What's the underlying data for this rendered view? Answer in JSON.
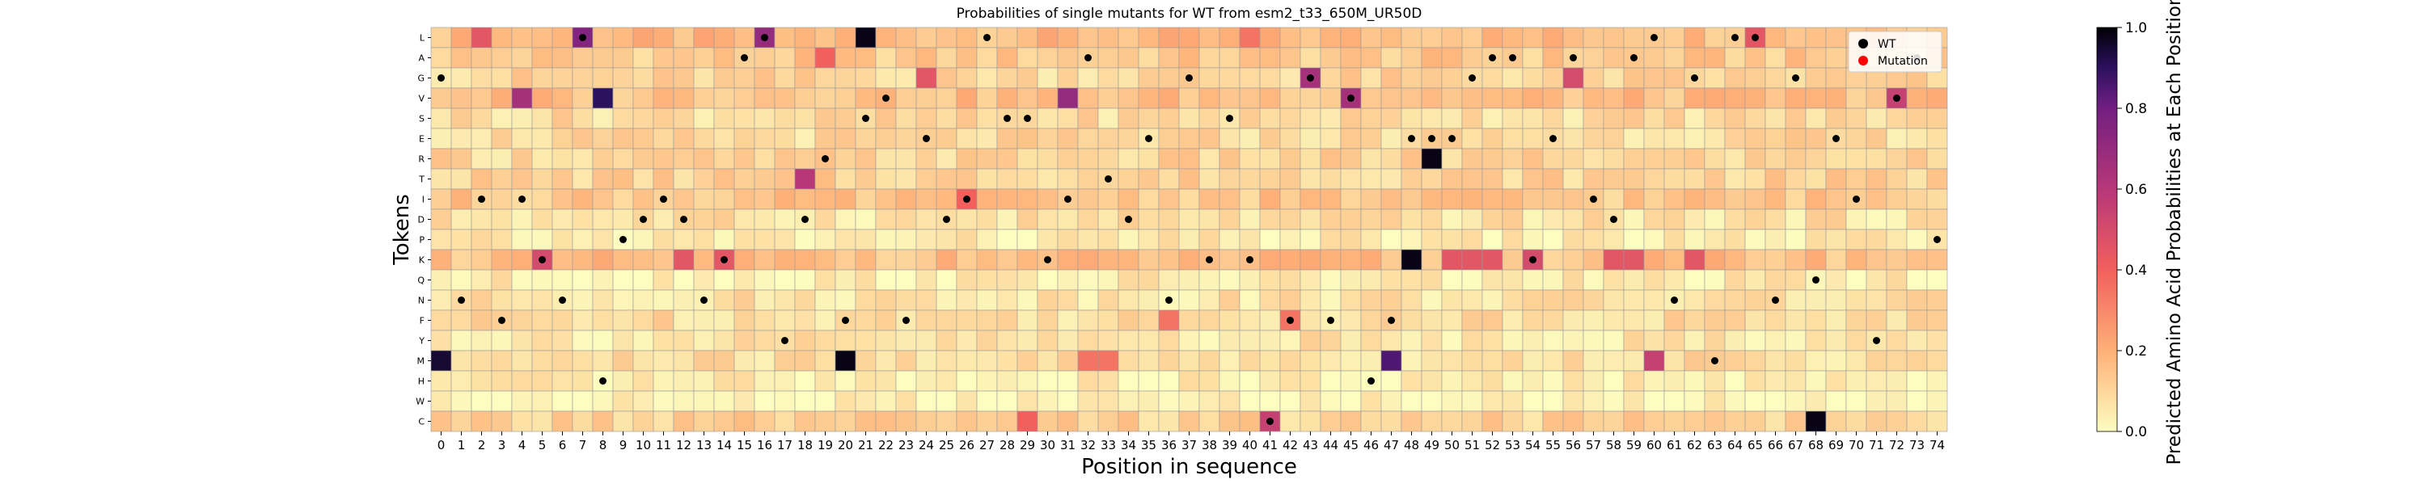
{
  "chart_data": {
    "type": "heatmap",
    "title": "Probabilities of single mutants for WT from esm2_t33_650M_UR50D",
    "xlabel": "Position in sequence",
    "ylabel": "Tokens",
    "x_categories": [
      "0",
      "1",
      "2",
      "3",
      "4",
      "5",
      "6",
      "7",
      "8",
      "9",
      "10",
      "11",
      "12",
      "13",
      "14",
      "15",
      "16",
      "17",
      "18",
      "19",
      "20",
      "21",
      "22",
      "23",
      "24",
      "25",
      "26",
      "27",
      "28",
      "29",
      "30",
      "31",
      "32",
      "33",
      "34",
      "35",
      "36",
      "37",
      "38",
      "39",
      "40",
      "41",
      "42",
      "43",
      "44",
      "45",
      "46",
      "47",
      "48",
      "49",
      "50",
      "51",
      "52",
      "53",
      "54",
      "55",
      "56",
      "57",
      "58",
      "59",
      "60",
      "61",
      "62",
      "63",
      "64",
      "65",
      "66",
      "67",
      "68",
      "69",
      "70",
      "71",
      "72",
      "73",
      "74"
    ],
    "y_categories": [
      "L",
      "A",
      "G",
      "V",
      "S",
      "E",
      "R",
      "T",
      "I",
      "D",
      "P",
      "K",
      "Q",
      "N",
      "F",
      "Y",
      "M",
      "H",
      "W",
      "C"
    ],
    "wt_sequence": [
      "G",
      "N",
      "I",
      "F",
      "I",
      "K",
      "N",
      "L",
      "H",
      "P",
      "D",
      "I",
      "D",
      "N",
      "K",
      "A",
      "L",
      "Y",
      "D",
      "R",
      "F",
      "S",
      "V",
      "F",
      "E",
      "D",
      "I",
      "L",
      "S",
      "S",
      "K",
      "I",
      "A",
      "T",
      "D",
      "E",
      "N",
      "G",
      "K",
      "S",
      "K",
      "C",
      "F",
      "G",
      "F",
      "V",
      "H",
      "F",
      "E",
      "E",
      "E",
      "G",
      "A",
      "A",
      "K",
      "E",
      "A",
      "I",
      "D",
      "A",
      "L",
      "N",
      "G",
      "M",
      "L",
      "L",
      "N",
      "G",
      "Q",
      "E",
      "I",
      "Y",
      "V",
      "A",
      "P"
    ],
    "mutation_points": [],
    "intense_cells": [
      {
        "x": 0,
        "token": "M",
        "value": 0.95
      },
      {
        "x": 7,
        "token": "L",
        "value": 0.75
      },
      {
        "x": 4,
        "token": "V",
        "value": 0.65
      },
      {
        "x": 8,
        "token": "V",
        "value": 0.9
      },
      {
        "x": 16,
        "token": "L",
        "value": 0.7
      },
      {
        "x": 18,
        "token": "T",
        "value": 0.6
      },
      {
        "x": 20,
        "token": "M",
        "value": 0.98
      },
      {
        "x": 21,
        "token": "L",
        "value": 0.98
      },
      {
        "x": 24,
        "token": "G",
        "value": 0.45
      },
      {
        "x": 26,
        "token": "I",
        "value": 0.4
      },
      {
        "x": 31,
        "token": "V",
        "value": 0.7
      },
      {
        "x": 32,
        "token": "M",
        "value": 0.35
      },
      {
        "x": 33,
        "token": "M",
        "value": 0.35
      },
      {
        "x": 41,
        "token": "C",
        "value": 0.55
      },
      {
        "x": 43,
        "token": "G",
        "value": 0.65
      },
      {
        "x": 45,
        "token": "V",
        "value": 0.65
      },
      {
        "x": 47,
        "token": "M",
        "value": 0.85
      },
      {
        "x": 48,
        "token": "K",
        "value": 0.98
      },
      {
        "x": 49,
        "token": "R",
        "value": 0.98
      },
      {
        "x": 5,
        "token": "K",
        "value": 0.5
      },
      {
        "x": 50,
        "token": "K",
        "value": 0.45
      },
      {
        "x": 51,
        "token": "K",
        "value": 0.45
      },
      {
        "x": 52,
        "token": "K",
        "value": 0.45
      },
      {
        "x": 54,
        "token": "K",
        "value": 0.5
      },
      {
        "x": 56,
        "token": "G",
        "value": 0.5
      },
      {
        "x": 58,
        "token": "K",
        "value": 0.45
      },
      {
        "x": 59,
        "token": "K",
        "value": 0.45
      },
      {
        "x": 60,
        "token": "M",
        "value": 0.55
      },
      {
        "x": 62,
        "token": "K",
        "value": 0.45
      },
      {
        "x": 65,
        "token": "L",
        "value": 0.45
      },
      {
        "x": 68,
        "token": "C",
        "value": 0.98
      },
      {
        "x": 72,
        "token": "V",
        "value": 0.55
      },
      {
        "x": 2,
        "token": "L",
        "value": 0.45
      },
      {
        "x": 12,
        "token": "K",
        "value": 0.45
      },
      {
        "x": 14,
        "token": "K",
        "value": 0.45
      },
      {
        "x": 19,
        "token": "A",
        "value": 0.4
      },
      {
        "x": 29,
        "token": "C",
        "value": 0.4
      },
      {
        "x": 36,
        "token": "F",
        "value": 0.35
      },
      {
        "x": 40,
        "token": "L",
        "value": 0.35
      },
      {
        "x": 42,
        "token": "F",
        "value": 0.35
      }
    ],
    "zlim": [
      0.0,
      1.0
    ],
    "colorbar_label": "Predicted Amino Acid Probabilities at Each Position",
    "colorbar_ticks": [
      "0.0",
      "0.2",
      "0.4",
      "0.6",
      "0.8",
      "1.0"
    ],
    "colormap": "magma_r",
    "legend": {
      "position": "top-right",
      "entries": [
        {
          "label": "WT",
          "color": "#000000"
        },
        {
          "label": "Mutation",
          "color": "#ff0000"
        }
      ]
    },
    "grid": true
  }
}
